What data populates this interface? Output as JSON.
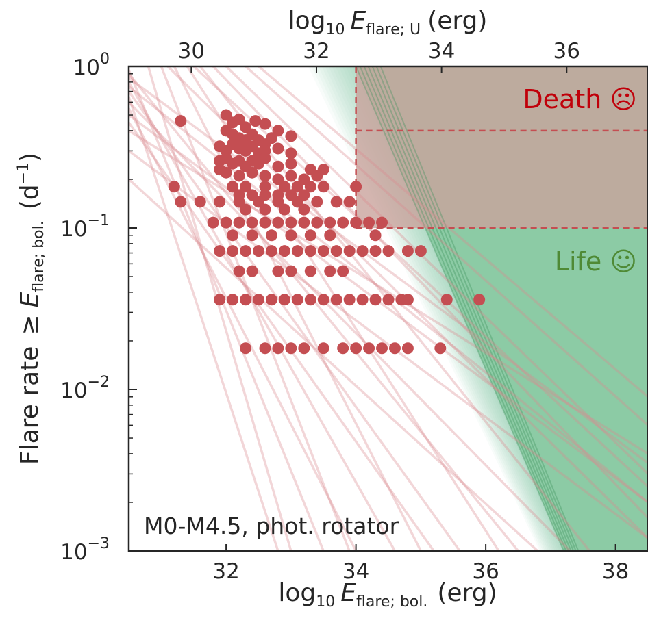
{
  "chart_data": {
    "type": "scatter",
    "annotation": "M0-M4.5, phot. rotator",
    "x_axis": {
      "label_prefix": "log",
      "label_base": "10",
      "label_E": "E",
      "label_sub": "flare; bol.",
      "label_unit": "(erg)",
      "range": [
        30.5,
        38.5
      ],
      "ticks": [
        32,
        34,
        36,
        38
      ],
      "tick_labels": [
        "32",
        "34",
        "36",
        "38"
      ]
    },
    "top_axis": {
      "label_prefix": "log",
      "label_base": "10",
      "label_E": "E",
      "label_sub": "flare; U",
      "label_unit": "(erg)",
      "range": [
        29.0,
        37.3
      ],
      "ticks": [
        30,
        32,
        34,
        36
      ],
      "tick_labels": [
        "30",
        "32",
        "34",
        "36"
      ]
    },
    "y_axis": {
      "label_prefix": "Flare rate",
      "label_ge": "≥",
      "label_E": "E",
      "label_sub": "flare; bol.",
      "label_unit_open": "(d",
      "label_unit_sup": "−1",
      "label_unit_close": ")",
      "scale": "log",
      "range": [
        0.001,
        1
      ],
      "ticks": [
        1,
        0.1,
        0.01,
        0.001
      ],
      "tick_base": "10",
      "tick_exponents": [
        "0",
        "−1",
        "−2",
        "−3"
      ]
    },
    "zones": [
      {
        "name": "Death",
        "label": "Death ☹",
        "color": "#c0000a",
        "x_min": 34.0,
        "y_min": 0.1,
        "y_max": 1.0
      },
      {
        "name": "Life",
        "label": "Life ☺",
        "color": "#4f8a35",
        "x_intercept_at_y1": 34.0,
        "x_intercept_at_ymin": 37.2
      }
    ],
    "death_boundaries": {
      "x": 34.0,
      "y_lines": [
        0.4,
        0.1
      ]
    },
    "colors": {
      "points": "#c44e52",
      "fits": "#d98a8e",
      "life_fill": "#7fc69a",
      "life_line": "#3a8f58",
      "death_fill": "#c9a39c",
      "death_line": "#c44e52",
      "axis": "#262626"
    },
    "fit_lines": [
      {
        "x0": 30.5,
        "y0": 0.9,
        "x1": 36.5,
        "y1": 0.001
      },
      {
        "x0": 30.5,
        "y0": 0.8,
        "x1": 34.6,
        "y1": 0.001
      },
      {
        "x0": 30.5,
        "y0": 0.95,
        "x1": 33.5,
        "y1": 0.001
      },
      {
        "x0": 30.5,
        "y0": 0.7,
        "x1": 35.6,
        "y1": 0.001
      },
      {
        "x0": 30.5,
        "y0": 0.6,
        "x1": 37.3,
        "y1": 0.001
      },
      {
        "x0": 30.5,
        "y0": 0.5,
        "x1": 38.5,
        "y1": 0.002
      },
      {
        "x0": 30.5,
        "y0": 0.4,
        "x1": 38.5,
        "y1": 0.004
      },
      {
        "x0": 30.5,
        "y0": 0.85,
        "x1": 38.5,
        "y1": 0.0035
      },
      {
        "x0": 30.8,
        "y0": 1.0,
        "x1": 33.0,
        "y1": 0.001
      },
      {
        "x0": 31.0,
        "y0": 1.0,
        "x1": 33.9,
        "y1": 0.001
      },
      {
        "x0": 31.2,
        "y0": 1.0,
        "x1": 35.0,
        "y1": 0.001
      },
      {
        "x0": 31.4,
        "y0": 1.0,
        "x1": 36.2,
        "y1": 0.001
      },
      {
        "x0": 31.6,
        "y0": 1.0,
        "x1": 37.6,
        "y1": 0.001
      },
      {
        "x0": 31.8,
        "y0": 1.0,
        "x1": 38.5,
        "y1": 0.0016
      },
      {
        "x0": 32.0,
        "y0": 1.0,
        "x1": 38.5,
        "y1": 0.003
      },
      {
        "x0": 32.3,
        "y0": 1.0,
        "x1": 38.5,
        "y1": 0.006
      },
      {
        "x0": 30.5,
        "y0": 0.3,
        "x1": 38.5,
        "y1": 0.0012
      },
      {
        "x0": 30.5,
        "y0": 0.2,
        "x1": 36.8,
        "y1": 0.001
      },
      {
        "x0": 30.5,
        "y0": 0.65,
        "x1": 32.8,
        "y1": 0.001
      },
      {
        "x0": 30.5,
        "y0": 0.55,
        "x1": 34.0,
        "y1": 0.001
      },
      {
        "x0": 30.5,
        "y0": 0.45,
        "x1": 35.2,
        "y1": 0.001
      },
      {
        "x0": 31.1,
        "y0": 1.0,
        "x1": 38.5,
        "y1": 0.0012
      },
      {
        "x0": 31.5,
        "y0": 1.0,
        "x1": 38.5,
        "y1": 0.0025
      },
      {
        "x0": 32.5,
        "y0": 1.0,
        "x1": 38.5,
        "y1": 0.009
      },
      {
        "x0": 30.5,
        "y0": 0.75,
        "x1": 38.5,
        "y1": 0.002
      }
    ],
    "points": [
      [
        31.3,
        0.46
      ],
      [
        32.0,
        0.5
      ],
      [
        32.1,
        0.45
      ],
      [
        32.2,
        0.47
      ],
      [
        32.3,
        0.42
      ],
      [
        32.45,
        0.46
      ],
      [
        32.6,
        0.44
      ],
      [
        32.8,
        0.4
      ],
      [
        33.0,
        0.37
      ],
      [
        32.0,
        0.4
      ],
      [
        32.1,
        0.38
      ],
      [
        32.2,
        0.36
      ],
      [
        32.3,
        0.35
      ],
      [
        32.4,
        0.38
      ],
      [
        32.5,
        0.35
      ],
      [
        32.6,
        0.33
      ],
      [
        32.7,
        0.36
      ],
      [
        31.9,
        0.32
      ],
      [
        32.0,
        0.3
      ],
      [
        32.1,
        0.33
      ],
      [
        32.2,
        0.31
      ],
      [
        32.3,
        0.3
      ],
      [
        32.4,
        0.32
      ],
      [
        32.5,
        0.29
      ],
      [
        32.6,
        0.3
      ],
      [
        32.8,
        0.31
      ],
      [
        33.0,
        0.29
      ],
      [
        31.9,
        0.26
      ],
      [
        32.0,
        0.27
      ],
      [
        32.1,
        0.25
      ],
      [
        32.2,
        0.26
      ],
      [
        32.3,
        0.24
      ],
      [
        32.4,
        0.26
      ],
      [
        32.5,
        0.25
      ],
      [
        32.6,
        0.27
      ],
      [
        32.8,
        0.24
      ],
      [
        33.0,
        0.25
      ],
      [
        33.3,
        0.23
      ],
      [
        33.5,
        0.23
      ],
      [
        31.9,
        0.23
      ],
      [
        32.0,
        0.22
      ],
      [
        32.2,
        0.21
      ],
      [
        32.4,
        0.22
      ],
      [
        32.6,
        0.21
      ],
      [
        32.8,
        0.2
      ],
      [
        33.0,
        0.21
      ],
      [
        33.2,
        0.2
      ],
      [
        33.4,
        0.21
      ],
      [
        31.2,
        0.18
      ],
      [
        32.1,
        0.18
      ],
      [
        32.3,
        0.18
      ],
      [
        32.6,
        0.18
      ],
      [
        32.9,
        0.18
      ],
      [
        33.1,
        0.18
      ],
      [
        33.3,
        0.18
      ],
      [
        33.5,
        0.18
      ],
      [
        34.0,
        0.18
      ],
      [
        32.2,
        0.16
      ],
      [
        32.4,
        0.16
      ],
      [
        32.6,
        0.16
      ],
      [
        32.8,
        0.16
      ],
      [
        33.0,
        0.16
      ],
      [
        33.2,
        0.16
      ],
      [
        31.3,
        0.145
      ],
      [
        31.6,
        0.145
      ],
      [
        31.9,
        0.145
      ],
      [
        32.2,
        0.145
      ],
      [
        32.5,
        0.145
      ],
      [
        32.8,
        0.145
      ],
      [
        33.1,
        0.145
      ],
      [
        33.4,
        0.145
      ],
      [
        33.7,
        0.145
      ],
      [
        33.9,
        0.145
      ],
      [
        32.3,
        0.13
      ],
      [
        32.6,
        0.13
      ],
      [
        32.9,
        0.13
      ],
      [
        33.2,
        0.13
      ],
      [
        31.8,
        0.108
      ],
      [
        32.0,
        0.108
      ],
      [
        32.2,
        0.108
      ],
      [
        32.4,
        0.108
      ],
      [
        32.6,
        0.108
      ],
      [
        32.8,
        0.108
      ],
      [
        33.0,
        0.108
      ],
      [
        33.2,
        0.108
      ],
      [
        33.4,
        0.108
      ],
      [
        33.6,
        0.108
      ],
      [
        33.8,
        0.108
      ],
      [
        34.0,
        0.108
      ],
      [
        34.2,
        0.108
      ],
      [
        34.4,
        0.108
      ],
      [
        32.1,
        0.09
      ],
      [
        32.4,
        0.09
      ],
      [
        32.7,
        0.09
      ],
      [
        33.0,
        0.09
      ],
      [
        33.3,
        0.09
      ],
      [
        33.6,
        0.09
      ],
      [
        34.3,
        0.09
      ],
      [
        31.9,
        0.072
      ],
      [
        32.1,
        0.072
      ],
      [
        32.3,
        0.072
      ],
      [
        32.5,
        0.072
      ],
      [
        32.7,
        0.072
      ],
      [
        32.9,
        0.072
      ],
      [
        33.1,
        0.072
      ],
      [
        33.3,
        0.072
      ],
      [
        33.5,
        0.072
      ],
      [
        33.7,
        0.072
      ],
      [
        33.9,
        0.072
      ],
      [
        34.1,
        0.072
      ],
      [
        34.3,
        0.072
      ],
      [
        34.5,
        0.072
      ],
      [
        34.8,
        0.072
      ],
      [
        35.0,
        0.072
      ],
      [
        32.2,
        0.054
      ],
      [
        32.4,
        0.054
      ],
      [
        32.8,
        0.054
      ],
      [
        33.0,
        0.054
      ],
      [
        33.3,
        0.054
      ],
      [
        33.6,
        0.054
      ],
      [
        33.8,
        0.054
      ],
      [
        31.9,
        0.036
      ],
      [
        32.1,
        0.036
      ],
      [
        32.3,
        0.036
      ],
      [
        32.5,
        0.036
      ],
      [
        32.7,
        0.036
      ],
      [
        32.9,
        0.036
      ],
      [
        33.1,
        0.036
      ],
      [
        33.3,
        0.036
      ],
      [
        33.5,
        0.036
      ],
      [
        33.7,
        0.036
      ],
      [
        33.9,
        0.036
      ],
      [
        34.1,
        0.036
      ],
      [
        34.3,
        0.036
      ],
      [
        34.5,
        0.036
      ],
      [
        34.7,
        0.036
      ],
      [
        34.8,
        0.036
      ],
      [
        35.4,
        0.036
      ],
      [
        35.9,
        0.036
      ],
      [
        32.3,
        0.018
      ],
      [
        32.6,
        0.018
      ],
      [
        32.8,
        0.018
      ],
      [
        33.0,
        0.018
      ],
      [
        33.2,
        0.018
      ],
      [
        33.5,
        0.018
      ],
      [
        33.8,
        0.018
      ],
      [
        34.0,
        0.018
      ],
      [
        34.2,
        0.018
      ],
      [
        34.4,
        0.018
      ],
      [
        34.6,
        0.018
      ],
      [
        34.8,
        0.018
      ],
      [
        35.3,
        0.018
      ]
    ]
  }
}
